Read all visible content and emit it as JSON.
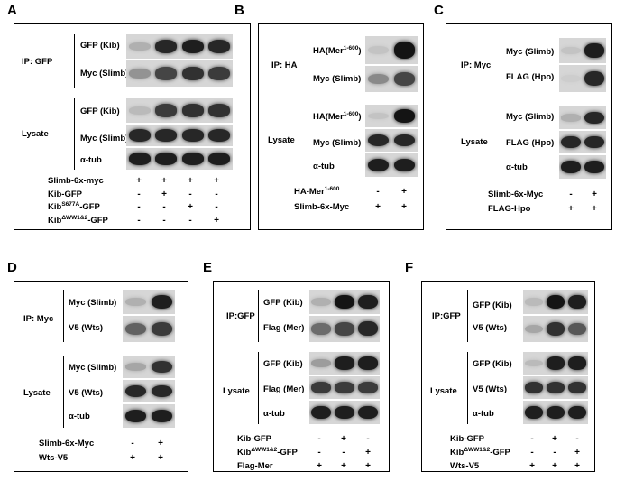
{
  "panels": {
    "A": {
      "letter": "A",
      "ip_label": "IP: GFP",
      "lysate_label": "Lysate",
      "rows": [
        "GFP (Kib)",
        "Myc (Slimb)",
        "GFP (Kib)",
        "Myc (Slimb)",
        "α-tub"
      ],
      "conditions": [
        {
          "name": "Slimb-6x-myc",
          "signs": [
            "+",
            "+",
            "+",
            "+"
          ]
        },
        {
          "name": "Kib-GFP",
          "signs": [
            "-",
            "+",
            "-",
            "-"
          ]
        },
        {
          "name_base": "Kib",
          "name_sup": "S677A",
          "name_tail": "-GFP",
          "signs": [
            "-",
            "-",
            "+",
            "-"
          ]
        },
        {
          "name_base": "Kib",
          "name_sup": "ΔWW1&2",
          "name_tail": "-GFP",
          "signs": [
            "-",
            "-",
            "-",
            "+"
          ]
        }
      ]
    },
    "B": {
      "letter": "B",
      "ip_label": "IP: HA",
      "lysate_label": "Lysate",
      "rows": [
        {
          "base": "HA(Mer",
          "sup": "1-600",
          "tail": ")"
        },
        {
          "base": "Myc (Slimb)"
        },
        {
          "base": "HA(Mer",
          "sup": "1-600",
          "tail": ")"
        },
        {
          "base": "Myc (Slimb)"
        },
        {
          "base": "α-tub"
        }
      ],
      "conditions": [
        {
          "name_base": "HA-Mer",
          "name_sup": "1-600",
          "name_tail": "",
          "signs": [
            "-",
            "+"
          ]
        },
        {
          "name_base": "Slimb-6x-Myc",
          "name_sup": "",
          "name_tail": "",
          "signs": [
            "+",
            "+"
          ]
        }
      ]
    },
    "C": {
      "letter": "C",
      "ip_label": "IP: Myc",
      "lysate_label": "Lysate",
      "rows": [
        "Myc (Slimb)",
        "FLAG (Hpo)",
        "Myc (Slimb)",
        "FLAG (Hpo)",
        "α-tub"
      ],
      "conditions": [
        {
          "name": "Slimb-6x-Myc",
          "signs": [
            "-",
            "+"
          ]
        },
        {
          "name": "FLAG-Hpo",
          "signs": [
            "+",
            "+"
          ]
        }
      ]
    },
    "D": {
      "letter": "D",
      "ip_label": "IP: Myc",
      "lysate_label": "Lysate",
      "rows": [
        "Myc (Slimb)",
        "V5 (Wts)",
        "Myc (Slimb)",
        "V5 (Wts)",
        "α-tub"
      ],
      "conditions": [
        {
          "name": "Slimb-6x-Myc",
          "signs": [
            "-",
            "+"
          ]
        },
        {
          "name": "Wts-V5",
          "signs": [
            "+",
            "+"
          ]
        }
      ]
    },
    "E": {
      "letter": "E",
      "ip_label": "IP:GFP",
      "lysate_label": "Lysate",
      "rows": [
        "GFP (Kib)",
        "Flag (Mer)",
        "GFP (Kib)",
        "Flag (Mer)",
        "α-tub"
      ],
      "conditions": [
        {
          "name": "Kib-GFP",
          "signs": [
            "-",
            "+",
            "-"
          ]
        },
        {
          "name_base": "Kib",
          "name_sup": "ΔWW1&2",
          "name_tail": "-GFP",
          "signs": [
            "-",
            "-",
            "+"
          ]
        },
        {
          "name": "Flag-Mer",
          "signs": [
            "+",
            "+",
            "+"
          ]
        }
      ]
    },
    "F": {
      "letter": "F",
      "ip_label": "IP:GFP",
      "lysate_label": "Lysate",
      "rows": [
        "GFP (Kib)",
        "V5 (Wts)",
        "GFP (Kib)",
        "V5 (Wts)",
        "α-tub"
      ],
      "conditions": [
        {
          "name": "Kib-GFP",
          "signs": [
            "-",
            "+",
            "-"
          ]
        },
        {
          "name_base": "Kib",
          "name_sup": "ΔWW1&2",
          "name_tail": "-GFP",
          "signs": [
            "-",
            "-",
            "+"
          ]
        },
        {
          "name": "Wts-V5",
          "signs": [
            "+",
            "+",
            "+"
          ]
        }
      ]
    }
  }
}
